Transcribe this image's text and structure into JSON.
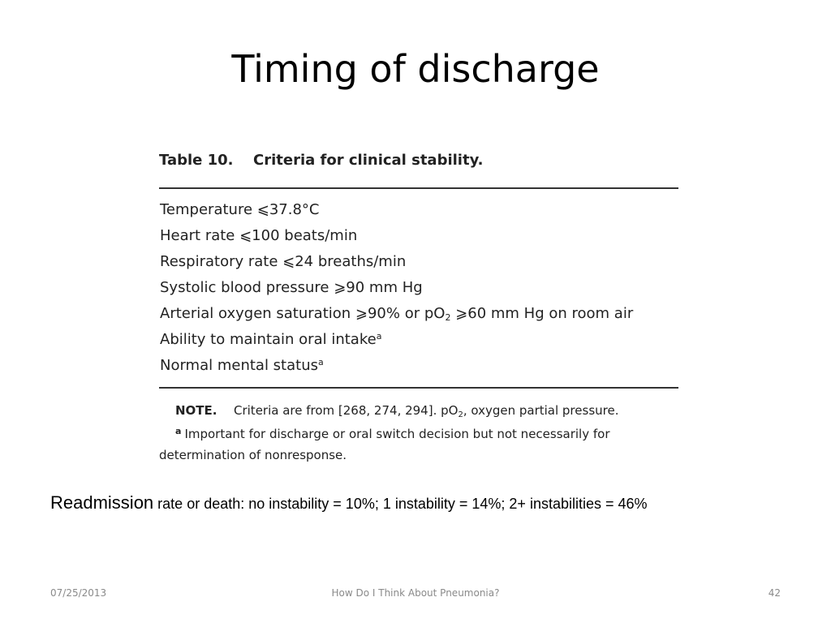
{
  "title": "Timing of discharge",
  "table": {
    "caption_number": "Table 10.",
    "caption_text": "Criteria for clinical stability.",
    "criteria": [
      "Temperature ⩽37.8°C",
      "Heart rate ⩽100 beats/min",
      "Respiratory rate ⩽24 breaths/min",
      "Systolic blood pressure ⩾90 mm Hg",
      {
        "before": "Arterial oxygen saturation ⩾90% or pO",
        "sub": "2",
        "after": " ⩾60 mm Hg on room air"
      },
      {
        "text": "Ability to maintain oral intake",
        "sup": "a"
      },
      {
        "text": "Normal mental status",
        "sup": "a"
      }
    ],
    "note_label": "NOTE.",
    "note_before": "Criteria are from [268, 274, 294]. pO",
    "note_sub": "2",
    "note_after": ", oxygen partial pressure.",
    "footnote_mark": "a",
    "footnote_line1": "Important for discharge or oral switch decision but not necessarily for",
    "footnote_line2": "determination of nonresponse."
  },
  "readmission": {
    "lead": "Readmission",
    "rest": " rate or death: no instability = 10%; 1 instability = 14%; 2+ instabilities = 46%"
  },
  "footer": {
    "date": "07/25/2013",
    "center": "How Do I Think About Pneumonia?",
    "page": "42"
  }
}
